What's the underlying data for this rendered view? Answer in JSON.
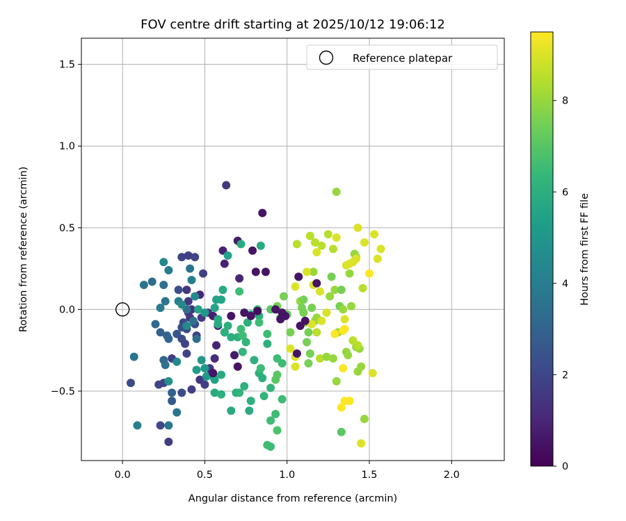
{
  "chart_data": {
    "type": "scatter",
    "title": "FOV centre drift starting at 2025/10/12 19:06:12",
    "xlabel": "Angular distance from reference (arcmin)",
    "ylabel": "Rotation from reference (arcmin)",
    "xlim": [
      -0.25,
      2.32
    ],
    "ylim": [
      -0.925,
      1.66
    ],
    "xticks": [
      0.0,
      0.5,
      1.0,
      1.5,
      2.0
    ],
    "xtick_labels": [
      "0.0",
      "0.5",
      "1.0",
      "1.5",
      "2.0"
    ],
    "yticks": [
      -0.5,
      0.0,
      0.5,
      1.0,
      1.5
    ],
    "ytick_labels": [
      "−0.5",
      "0.0",
      "0.5",
      "1.0",
      "1.5"
    ],
    "grid": true,
    "legend": {
      "location": "top-right",
      "entries": [
        "Reference platepar"
      ]
    },
    "reference_point": {
      "label": "Reference platepar",
      "x": 0.0,
      "y": 0.0
    },
    "colorbar": {
      "label": "Hours from first FF file",
      "range": [
        0,
        9.5
      ],
      "ticks": [
        0,
        2,
        4,
        6,
        8
      ],
      "tick_labels": [
        "0",
        "2",
        "4",
        "6",
        "8"
      ]
    },
    "points": [
      [
        0.63,
        0.76,
        1.5
      ],
      [
        0.85,
        0.59,
        0.5
      ],
      [
        0.7,
        0.42,
        0.7
      ],
      [
        0.61,
        0.36,
        0.9
      ],
      [
        0.79,
        0.36,
        0.5
      ],
      [
        0.62,
        0.28,
        0.9
      ],
      [
        0.81,
        0.23,
        0.5
      ],
      [
        0.87,
        0.23,
        0.5
      ],
      [
        0.71,
        0.19,
        1.0
      ],
      [
        0.36,
        0.32,
        1.9
      ],
      [
        0.4,
        0.33,
        1.8
      ],
      [
        0.44,
        0.32,
        2.0
      ],
      [
        0.49,
        0.22,
        1.8
      ],
      [
        0.47,
        0.09,
        1.0
      ],
      [
        0.34,
        0.12,
        2.3
      ],
      [
        0.39,
        0.12,
        1.5
      ],
      [
        0.4,
        0.05,
        1.6
      ],
      [
        0.42,
        0.0,
        1.4
      ],
      [
        0.4,
        -0.02,
        1.7
      ],
      [
        0.41,
        -0.05,
        1.5
      ],
      [
        0.37,
        -0.08,
        2.1
      ],
      [
        0.39,
        -0.12,
        2.0
      ],
      [
        0.44,
        -0.09,
        2.2
      ],
      [
        0.36,
        -0.11,
        2.4
      ],
      [
        0.33,
        -0.15,
        2.5
      ],
      [
        0.36,
        -0.18,
        2.2
      ],
      [
        0.38,
        -0.21,
        1.9
      ],
      [
        0.45,
        -0.16,
        1.8
      ],
      [
        0.48,
        -0.05,
        1.6
      ],
      [
        0.52,
        -0.02,
        1.4
      ],
      [
        0.55,
        -0.04,
        0.8
      ],
      [
        0.58,
        -0.1,
        0.9
      ],
      [
        0.62,
        -0.14,
        0.8
      ],
      [
        0.57,
        -0.22,
        0.9
      ],
      [
        0.56,
        -0.3,
        1.2
      ],
      [
        0.53,
        -0.36,
        1.5
      ],
      [
        0.54,
        -0.39,
        1.3
      ],
      [
        0.47,
        -0.43,
        1.5
      ],
      [
        0.5,
        -0.46,
        1.8
      ],
      [
        0.42,
        -0.49,
        1.8
      ],
      [
        0.39,
        -0.27,
        1.9
      ],
      [
        0.3,
        -0.3,
        1.8
      ],
      [
        0.36,
        -0.51,
        2.2
      ],
      [
        0.25,
        -0.45,
        1.9
      ],
      [
        0.22,
        -0.46,
        2.0
      ],
      [
        0.05,
        -0.45,
        2.2
      ],
      [
        0.23,
        -0.71,
        2.1
      ],
      [
        0.28,
        -0.81,
        1.7
      ],
      [
        0.3,
        -0.56,
        2.7
      ],
      [
        0.3,
        -0.51,
        3.0
      ],
      [
        0.28,
        -0.71,
        3.8
      ],
      [
        0.33,
        -0.63,
        3.6
      ],
      [
        0.2,
        -0.09,
        3.2
      ],
      [
        0.23,
        -0.14,
        2.9
      ],
      [
        0.27,
        -0.16,
        3.0
      ],
      [
        0.28,
        -0.18,
        3.1
      ],
      [
        0.25,
        -0.31,
        3.2
      ],
      [
        0.26,
        -0.34,
        3.5
      ],
      [
        0.28,
        -0.44,
        4.8
      ],
      [
        0.33,
        -0.32,
        4.5
      ],
      [
        0.07,
        -0.29,
        3.7
      ],
      [
        0.09,
        -0.71,
        4.0
      ],
      [
        0.13,
        0.15,
        3.6
      ],
      [
        0.18,
        0.17,
        3.4
      ],
      [
        0.25,
        0.15,
        3.5
      ],
      [
        0.23,
        0.01,
        4.0
      ],
      [
        0.26,
        0.05,
        3.7
      ],
      [
        0.25,
        0.29,
        4.5
      ],
      [
        0.28,
        0.24,
        4.0
      ],
      [
        0.41,
        0.25,
        3.6
      ],
      [
        0.42,
        0.18,
        4.0
      ],
      [
        0.44,
        0.08,
        4.5
      ],
      [
        0.39,
        0.0,
        3.5
      ],
      [
        0.43,
        -0.07,
        3.5
      ],
      [
        0.45,
        -0.18,
        3.4
      ],
      [
        0.34,
        0.05,
        4.0
      ],
      [
        0.36,
        0.03,
        4.5
      ],
      [
        0.39,
        -0.1,
        4.5
      ],
      [
        0.46,
        0.0,
        5.5
      ],
      [
        0.5,
        -0.02,
        5.0
      ],
      [
        0.48,
        -0.31,
        5.0
      ],
      [
        0.5,
        -0.36,
        5.0
      ],
      [
        0.51,
        -0.41,
        5.0
      ],
      [
        0.45,
        -0.37,
        5.2
      ],
      [
        0.55,
        -0.41,
        5.2
      ],
      [
        0.56,
        -0.43,
        5.5
      ],
      [
        0.57,
        0.06,
        5.5
      ],
      [
        0.56,
        0.01,
        5.5
      ],
      [
        0.58,
        -0.06,
        5.8
      ],
      [
        0.61,
        0.12,
        5.8
      ],
      [
        0.6,
        0.06,
        5.5
      ],
      [
        0.64,
        0.33,
        5.5
      ],
      [
        0.72,
        0.4,
        5.8
      ],
      [
        0.71,
        0.11,
        6.5
      ],
      [
        0.56,
        -0.51,
        5.8
      ],
      [
        0.6,
        -0.52,
        6.0
      ],
      [
        0.6,
        -0.4,
        5.8
      ],
      [
        0.58,
        -0.09,
        5.8
      ],
      [
        0.62,
        -0.14,
        6.0
      ],
      [
        0.66,
        -0.17,
        6.0
      ],
      [
        0.64,
        -0.1,
        6.0
      ],
      [
        0.66,
        -0.62,
        5.8
      ],
      [
        0.69,
        -0.51,
        6.0
      ],
      [
        0.71,
        -0.51,
        6.2
      ],
      [
        0.74,
        -0.47,
        6.0
      ],
      [
        0.77,
        -0.62,
        5.8
      ],
      [
        0.78,
        -0.56,
        6.0
      ],
      [
        0.7,
        -0.17,
        6.0
      ],
      [
        0.73,
        -0.26,
        6.2
      ],
      [
        0.75,
        -0.2,
        6.2
      ],
      [
        0.73,
        -0.16,
        6.5
      ],
      [
        0.72,
        -0.12,
        6.5
      ],
      [
        0.76,
        -0.08,
        6.0
      ],
      [
        0.8,
        -0.31,
        6.0
      ],
      [
        0.83,
        -0.39,
        6.0
      ],
      [
        0.85,
        -0.42,
        6.0
      ],
      [
        0.86,
        -0.53,
        6.2
      ],
      [
        0.84,
        -0.36,
        6.5
      ],
      [
        0.88,
        -0.21,
        6.0
      ],
      [
        0.88,
        -0.15,
        6.5
      ],
      [
        0.84,
        0.39,
        5.8
      ],
      [
        0.83,
        -0.04,
        6.0
      ],
      [
        0.83,
        -0.08,
        6.5
      ],
      [
        0.82,
        0.0,
        6.5
      ],
      [
        0.78,
        -0.03,
        6.0
      ],
      [
        0.9,
        -0.48,
        6.2
      ],
      [
        0.9,
        -0.68,
        6.5
      ],
      [
        0.88,
        -0.83,
        6.5
      ],
      [
        0.9,
        -0.84,
        6.5
      ],
      [
        0.93,
        -0.64,
        6.5
      ],
      [
        0.94,
        -0.74,
        6.8
      ],
      [
        0.94,
        -0.3,
        6.5
      ],
      [
        0.94,
        -0.4,
        7.0
      ],
      [
        0.93,
        -0.43,
        7.0
      ],
      [
        0.97,
        -0.33,
        6.5
      ],
      [
        0.97,
        -0.55,
        6.5
      ],
      [
        0.9,
        0.0,
        7.0
      ],
      [
        0.94,
        0.0,
        7.5
      ],
      [
        0.94,
        0.02,
        7.5
      ],
      [
        0.96,
        -0.05,
        7.0
      ],
      [
        0.98,
        -0.03,
        7.5
      ],
      [
        1.0,
        -0.03,
        7.2
      ],
      [
        0.98,
        0.08,
        7.5
      ],
      [
        1.02,
        -0.14,
        7.5
      ],
      [
        1.06,
        0.4,
        8.5
      ],
      [
        1.08,
        0.05,
        8.0
      ],
      [
        1.09,
        0.01,
        7.5
      ],
      [
        1.1,
        0.06,
        7.5
      ],
      [
        1.1,
        -0.02,
        7.5
      ],
      [
        1.11,
        -0.08,
        8.0
      ],
      [
        1.13,
        -0.14,
        7.5
      ],
      [
        1.12,
        -0.2,
        7.5
      ],
      [
        1.13,
        -0.33,
        7.5
      ],
      [
        1.14,
        -0.27,
        7.5
      ],
      [
        1.15,
        0.01,
        7.5
      ],
      [
        1.16,
        0.23,
        8.0
      ],
      [
        1.17,
        0.41,
        8.5
      ],
      [
        1.14,
        0.45,
        8.5
      ],
      [
        1.17,
        -0.07,
        8.0
      ],
      [
        1.18,
        -0.05,
        8.0
      ],
      [
        1.18,
        -0.14,
        8.5
      ],
      [
        1.2,
        -0.3,
        8.5
      ],
      [
        1.24,
        -0.29,
        8.0
      ],
      [
        1.25,
        0.46,
        8.5
      ],
      [
        1.26,
        0.08,
        8.0
      ],
      [
        1.27,
        0.2,
        7.5
      ],
      [
        1.28,
        -0.3,
        8.0
      ],
      [
        1.29,
        0.12,
        8.0
      ],
      [
        1.3,
        0.72,
        8.0
      ],
      [
        1.3,
        -0.44,
        8.0
      ],
      [
        1.31,
        -0.14,
        8.0
      ],
      [
        1.32,
        0.02,
        7.5
      ],
      [
        1.33,
        0.12,
        7.5
      ],
      [
        1.34,
        0.0,
        8.0
      ],
      [
        1.33,
        -0.75,
        7.0
      ],
      [
        1.36,
        -0.26,
        8.0
      ],
      [
        1.37,
        -0.28,
        8.0
      ],
      [
        1.38,
        0.22,
        8.0
      ],
      [
        1.39,
        0.02,
        8.0
      ],
      [
        1.41,
        0.34,
        8.0
      ],
      [
        1.42,
        0.32,
        8.0
      ],
      [
        1.42,
        -0.23,
        8.0
      ],
      [
        1.44,
        -0.24,
        8.0
      ],
      [
        1.45,
        -0.35,
        8.0
      ],
      [
        1.43,
        -0.38,
        8.0
      ],
      [
        1.46,
        0.13,
        8.5
      ],
      [
        1.47,
        -0.67,
        8.0
      ],
      [
        1.5,
        0.22,
        9.5
      ],
      [
        1.52,
        -0.39,
        9.0
      ],
      [
        1.53,
        0.46,
        9.0
      ],
      [
        1.55,
        0.31,
        9.0
      ],
      [
        1.57,
        0.37,
        9.0
      ],
      [
        1.43,
        0.5,
        9.0
      ],
      [
        1.47,
        0.41,
        9.0
      ],
      [
        1.36,
        0.27,
        9.0
      ],
      [
        1.38,
        0.28,
        9.0
      ],
      [
        1.4,
        0.29,
        9.0
      ],
      [
        1.42,
        0.31,
        9.0
      ],
      [
        1.3,
        0.44,
        9.0
      ],
      [
        1.28,
        0.37,
        8.5
      ],
      [
        1.18,
        0.35,
        9.0
      ],
      [
        1.21,
        0.39,
        8.5
      ],
      [
        1.05,
        0.14,
        9.0
      ],
      [
        1.07,
        0.2,
        9.0
      ],
      [
        1.12,
        0.23,
        9.0
      ],
      [
        1.16,
        0.15,
        9.0
      ],
      [
        1.2,
        0.11,
        9.0
      ],
      [
        1.05,
        -0.29,
        9.0
      ],
      [
        1.05,
        -0.35,
        9.0
      ],
      [
        1.02,
        -0.24,
        9.0
      ],
      [
        1.15,
        -0.09,
        9.0
      ],
      [
        1.21,
        -0.07,
        9.0
      ],
      [
        1.24,
        -0.02,
        9.0
      ],
      [
        1.29,
        -0.15,
        9.5
      ],
      [
        1.34,
        -0.13,
        9.5
      ],
      [
        1.35,
        -0.06,
        9.0
      ],
      [
        1.35,
        -0.12,
        9.5
      ],
      [
        1.34,
        -0.36,
        9.5
      ],
      [
        1.33,
        -0.6,
        9.5
      ],
      [
        1.35,
        -0.56,
        9.5
      ],
      [
        1.38,
        -0.56,
        9.5
      ],
      [
        1.45,
        -0.82,
        9.0
      ],
      [
        1.43,
        -0.22,
        8.5
      ],
      [
        1.4,
        -0.19,
        8.5
      ],
      [
        1.08,
        -0.1,
        0.5
      ],
      [
        1.06,
        -0.27,
        0.5
      ],
      [
        1.07,
        0.2,
        0.5
      ],
      [
        1.11,
        -0.07,
        0.5
      ],
      [
        1.18,
        0.16,
        0.5
      ],
      [
        0.82,
        -0.01,
        0.3
      ],
      [
        0.78,
        -0.04,
        0.5
      ],
      [
        0.93,
        0.0,
        0.5
      ],
      [
        0.96,
        -0.06,
        0.5
      ],
      [
        0.99,
        -0.04,
        0.6
      ],
      [
        0.97,
        -0.02,
        0.5
      ],
      [
        0.55,
        -0.39,
        0.5
      ],
      [
        0.7,
        -0.35,
        0.5
      ],
      [
        0.68,
        -0.28,
        0.7
      ],
      [
        0.66,
        -0.04,
        0.6
      ],
      [
        0.74,
        -0.02,
        0.5
      ]
    ]
  }
}
